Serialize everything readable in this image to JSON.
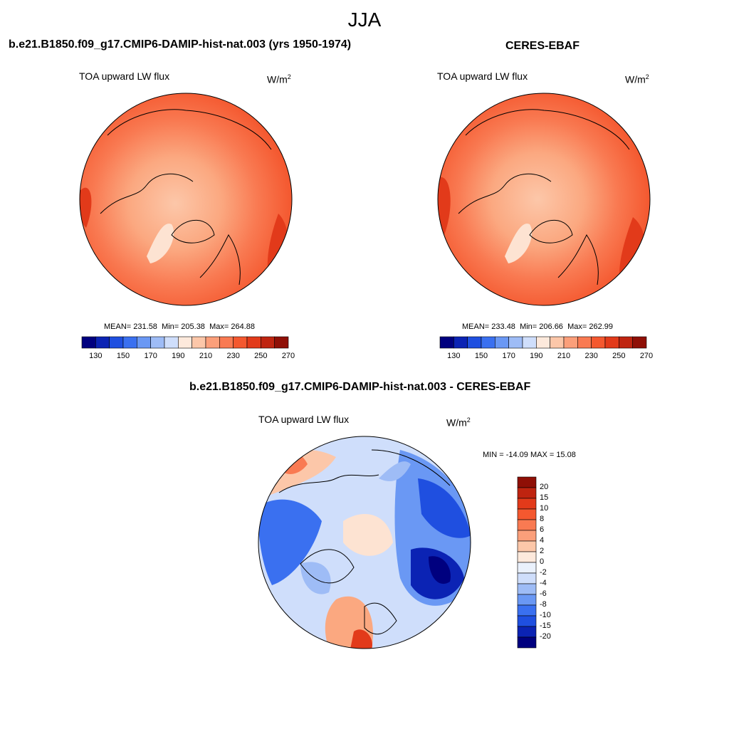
{
  "season": "JJA",
  "panels": [
    {
      "title": "b.e21.B1850.f09_g17.CMIP6-DAMIP-hist-nat.003 (yrs 1950-1974)",
      "variable": "TOA upward LW flux",
      "units_base": "W/m",
      "units_exp": "2",
      "stats": {
        "mean_label": "MEAN=",
        "mean": "231.58",
        "min_label": "Min=",
        "min": "205.38",
        "max_label": "Max=",
        "max": "264.88"
      }
    },
    {
      "title": "CERES-EBAF",
      "variable": "TOA upward LW flux",
      "units_base": "W/m",
      "units_exp": "2",
      "stats": {
        "mean_label": "MEAN=",
        "mean": "233.48",
        "min_label": "Min=",
        "min": "206.66",
        "max_label": "Max=",
        "max": "262.99"
      }
    },
    {
      "title": "b.e21.B1850.f09_g17.CMIP6-DAMIP-hist-nat.003 - CERES-EBAF",
      "variable": "TOA upward LW flux",
      "units_base": "W/m",
      "units_exp": "2",
      "stats_text": "MIN = -14.09 MAX =  15.08"
    }
  ],
  "colorbars": {
    "abs": {
      "colors": [
        "#00007f",
        "#0b23b4",
        "#1f4fe0",
        "#3a70f0",
        "#6a98f4",
        "#9ebcf6",
        "#cfdefb",
        "#fde9dc",
        "#fcc7a9",
        "#fb9f7a",
        "#f97a52",
        "#f4582f",
        "#e23a1a",
        "#bf2410",
        "#8f0f06"
      ],
      "tick_labels": [
        "130",
        "150",
        "170",
        "190",
        "210",
        "230",
        "250",
        "270"
      ]
    },
    "diff": {
      "colors": [
        "#8f0f06",
        "#bf2410",
        "#e23a1a",
        "#f4582f",
        "#f97a52",
        "#fb9f7a",
        "#fcc7a9",
        "#fde9dc",
        "#eaf1fc",
        "#cfdefb",
        "#9ebcf6",
        "#6a98f4",
        "#3a70f0",
        "#1f4fe0",
        "#0b23b4",
        "#00007f"
      ],
      "tick_labels": [
        "20",
        "15",
        "10",
        "8",
        "6",
        "4",
        "2",
        "0",
        "-2",
        "-4",
        "-6",
        "-8",
        "-10",
        "-15",
        "-20"
      ]
    }
  },
  "chart_data": [
    {
      "type": "heatmap",
      "title": "b.e21.B1850.f09_g17.CMIP6-DAMIP-hist-nat.003 (yrs 1950-1974)",
      "variable": "TOA upward LW flux",
      "units": "W/m2",
      "projection": "polar stereographic (north pole)",
      "stats": {
        "mean": 231.58,
        "min": 205.38,
        "max": 264.88
      },
      "colorbar_levels": [
        130,
        150,
        170,
        190,
        210,
        230,
        250,
        270
      ]
    },
    {
      "type": "heatmap",
      "title": "CERES-EBAF",
      "variable": "TOA upward LW flux",
      "units": "W/m2",
      "projection": "polar stereographic (north pole)",
      "stats": {
        "mean": 233.48,
        "min": 206.66,
        "max": 262.99
      },
      "colorbar_levels": [
        130,
        150,
        170,
        190,
        210,
        230,
        250,
        270
      ]
    },
    {
      "type": "heatmap",
      "title": "b.e21.B1850.f09_g17.CMIP6-DAMIP-hist-nat.003 - CERES-EBAF",
      "variable": "TOA upward LW flux",
      "units": "W/m2",
      "projection": "polar stereographic (north pole)",
      "stats": {
        "min": -14.09,
        "max": 15.08
      },
      "colorbar_levels": [
        20,
        15,
        10,
        8,
        6,
        4,
        2,
        0,
        -2,
        -4,
        -6,
        -8,
        -10,
        -15,
        -20
      ]
    }
  ]
}
